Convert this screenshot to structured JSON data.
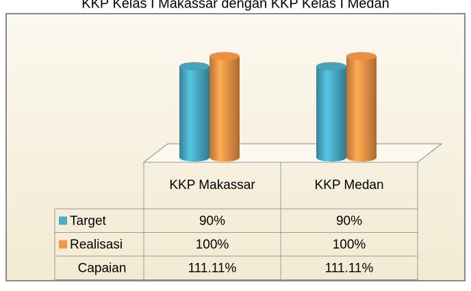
{
  "chart_data": {
    "type": "bar",
    "title": "KKP Kelas I Makassar dengan KKP Kelas I Medan",
    "categories": [
      "KKP Makassar",
      "KKP Medan"
    ],
    "series": [
      {
        "name": "Target",
        "color": "#4bacc6",
        "values": [
          90,
          90
        ],
        "value_labels": [
          "90%",
          "90%"
        ]
      },
      {
        "name": "Realisasi",
        "color": "#f79646",
        "values": [
          100,
          100
        ],
        "value_labels": [
          "100%",
          "100%"
        ]
      }
    ],
    "table_rows": [
      {
        "name": "Capaian",
        "values": [
          111.11,
          111.11
        ],
        "value_labels": [
          "111.11%",
          "111.11%"
        ]
      }
    ]
  }
}
